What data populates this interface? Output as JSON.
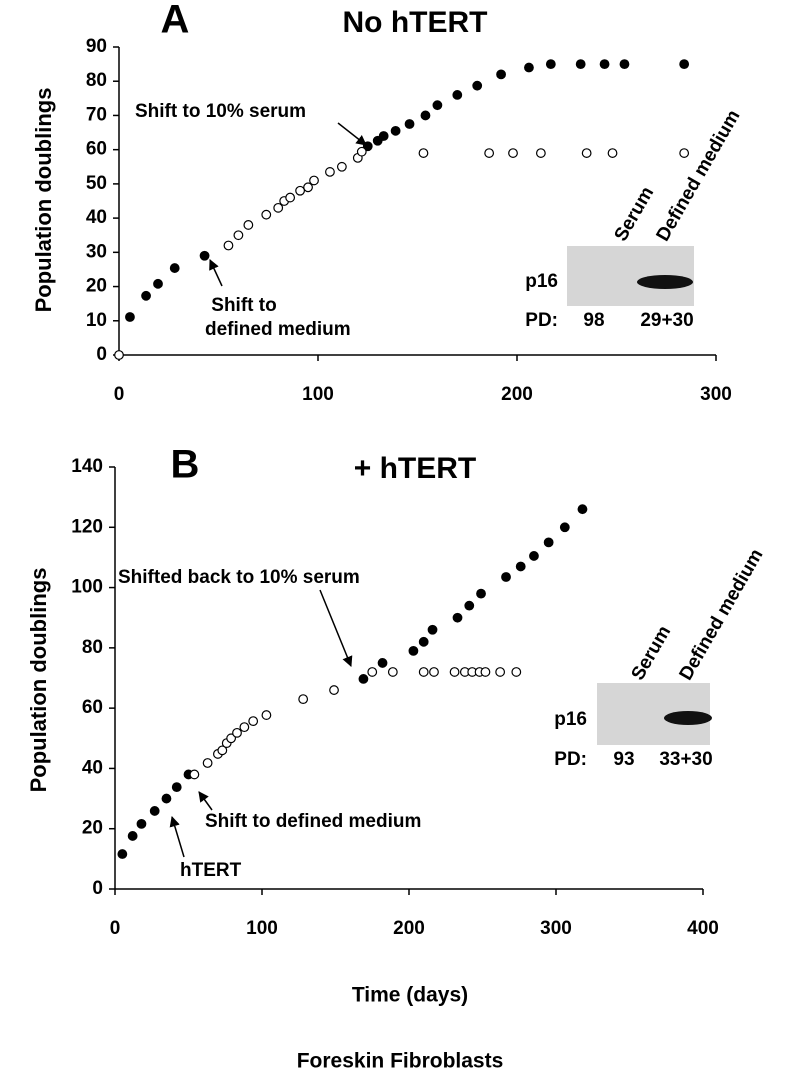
{
  "chart_data": [
    {
      "type": "scatter",
      "panel_label": "A",
      "title": "No hTERT",
      "y_label": "Population doublings",
      "xlim": [
        0,
        300
      ],
      "xticks": [
        0,
        100,
        200,
        300
      ],
      "ylim": [
        0,
        90
      ],
      "yticks": [
        0,
        10,
        20,
        30,
        40,
        50,
        60,
        70,
        80,
        90
      ],
      "series": [
        {
          "fill": "#000000",
          "x": [
            5.5,
            13.6,
            19.6,
            28,
            43,
            125,
            130,
            133,
            139,
            146,
            154,
            160,
            170,
            180,
            192,
            206,
            217,
            232,
            244,
            254,
            284
          ],
          "values": [
            11.1,
            17.3,
            20.8,
            25.4,
            29,
            61,
            62.6,
            64,
            65.5,
            67.5,
            70,
            73,
            76,
            78.7,
            82,
            84,
            85,
            85,
            85,
            85,
            85
          ]
        },
        {
          "fill": "#ffffff",
          "x": [
            0,
            55,
            60,
            65,
            74,
            80,
            83,
            86,
            91,
            95,
            98,
            106,
            112,
            120,
            122,
            153,
            186,
            198,
            212,
            235,
            248,
            284
          ],
          "values": [
            0,
            32,
            35,
            38,
            41,
            43,
            45,
            46,
            48,
            49,
            51,
            53.5,
            55,
            57.6,
            59.4,
            59,
            59,
            59,
            59,
            59,
            59,
            59
          ]
        }
      ],
      "annotations": [
        [
          "Shift to 10% serum"
        ],
        [
          "Shift to",
          "defined medium"
        ]
      ],
      "inset": {
        "lanes": [
          "Serum",
          "Defined medium"
        ],
        "band": "p16",
        "pd_label": "PD:",
        "pd": [
          98,
          "29+30"
        ]
      }
    },
    {
      "type": "scatter",
      "panel_label": "B",
      "title": "+ hTERT",
      "y_label": "Population doublings",
      "x_label": "Time (days)",
      "xlim": [
        0,
        400
      ],
      "xticks": [
        0,
        100,
        200,
        300,
        400
      ],
      "ylim": [
        0,
        140
      ],
      "yticks": [
        0,
        20,
        40,
        60,
        80,
        100,
        120,
        140
      ],
      "series": [
        {
          "fill": "#000000",
          "x": [
            5,
            12,
            18,
            27,
            35,
            42,
            50,
            169,
            182,
            203,
            210,
            216,
            233,
            241,
            249,
            266,
            276,
            285,
            295,
            306,
            318
          ],
          "values": [
            11.6,
            17.6,
            21.6,
            25.9,
            30,
            33.8,
            38,
            69.7,
            75,
            79,
            82,
            86,
            90,
            94,
            98,
            103.5,
            107,
            110.5,
            115,
            120,
            126
          ]
        },
        {
          "fill": "#ffffff",
          "x": [
            54,
            63,
            70,
            73,
            76,
            79,
            83,
            88,
            94,
            103,
            128,
            149,
            175,
            189,
            210,
            217,
            231,
            238,
            243,
            248,
            252,
            262,
            273
          ],
          "values": [
            38,
            41.8,
            44.8,
            46,
            48.4,
            50,
            51.8,
            53.7,
            55.7,
            57.7,
            63,
            66,
            72,
            72,
            72,
            72,
            72,
            72,
            72,
            72,
            72,
            72,
            72
          ]
        }
      ],
      "annotations": [
        [
          "Shifted back to 10% serum"
        ],
        [
          "Shift to defined medium"
        ],
        [
          "hTERT"
        ]
      ],
      "inset": {
        "lanes": [
          "Serum",
          "Defined medium"
        ],
        "band": "p16",
        "pd_label": "PD:",
        "pd": [
          93,
          "33+30"
        ]
      }
    }
  ],
  "caption": "Foreskin Fibroblasts"
}
